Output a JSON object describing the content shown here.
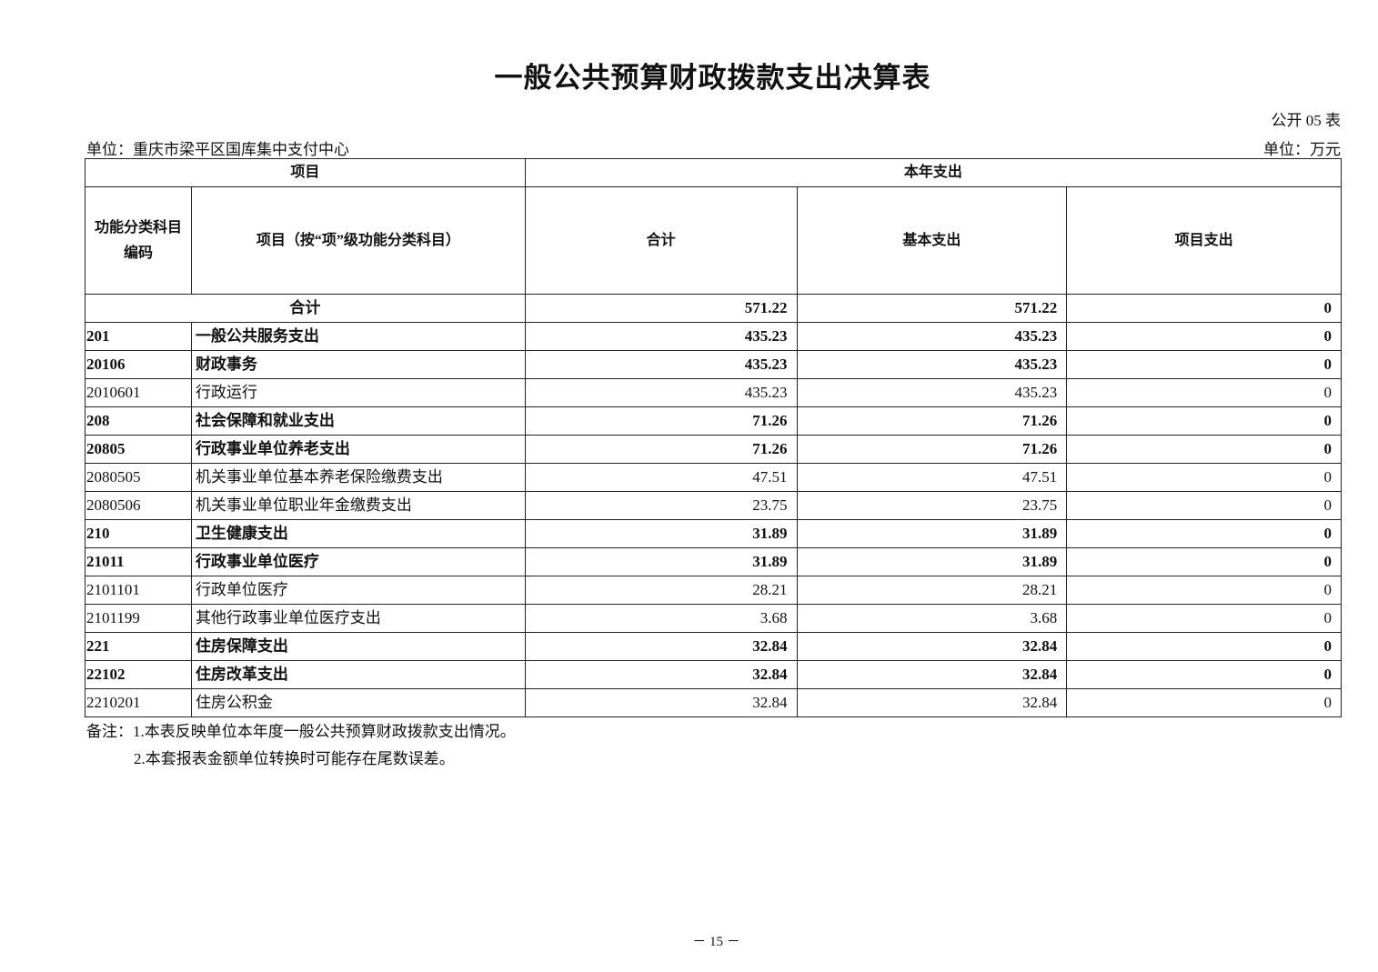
{
  "title": "一般公共预算财政拨款支出决算表",
  "table_no": "公开 05 表",
  "unit_left": "单位：重庆市梁平区国库集中支付中心",
  "unit_right": "单位：万元",
  "headers": {
    "item": "项目",
    "current_year": "本年支出",
    "code": "功能分类科目编码",
    "name": "项目（按“项”级功能分类科目）",
    "total": "合计",
    "basic": "基本支出",
    "project": "项目支出"
  },
  "total_row": {
    "label": "合计",
    "total": "571.22",
    "basic": "571.22",
    "project": "0"
  },
  "rows": [
    {
      "code": "201",
      "name": "一般公共服务支出",
      "total": "435.23",
      "basic": "435.23",
      "project": "0",
      "bold": true
    },
    {
      "code": "20106",
      "name": "财政事务",
      "total": "435.23",
      "basic": "435.23",
      "project": "0",
      "bold": true
    },
    {
      "code": "2010601",
      "name": "行政运行",
      "total": "435.23",
      "basic": "435.23",
      "project": "0",
      "bold": false
    },
    {
      "code": "208",
      "name": "社会保障和就业支出",
      "total": "71.26",
      "basic": "71.26",
      "project": "0",
      "bold": true
    },
    {
      "code": "20805",
      "name": "行政事业单位养老支出",
      "total": "71.26",
      "basic": "71.26",
      "project": "0",
      "bold": true
    },
    {
      "code": "2080505",
      "name": "机关事业单位基本养老保险缴费支出",
      "total": "47.51",
      "basic": "47.51",
      "project": "0",
      "bold": false
    },
    {
      "code": "2080506",
      "name": "机关事业单位职业年金缴费支出",
      "total": "23.75",
      "basic": "23.75",
      "project": "0",
      "bold": false
    },
    {
      "code": "210",
      "name": "卫生健康支出",
      "total": "31.89",
      "basic": "31.89",
      "project": "0",
      "bold": true
    },
    {
      "code": "21011",
      "name": "行政事业单位医疗",
      "total": "31.89",
      "basic": "31.89",
      "project": "0",
      "bold": true
    },
    {
      "code": "2101101",
      "name": "行政单位医疗",
      "total": "28.21",
      "basic": "28.21",
      "project": "0",
      "bold": false
    },
    {
      "code": "2101199",
      "name": "其他行政事业单位医疗支出",
      "total": "3.68",
      "basic": "3.68",
      "project": "0",
      "bold": false
    },
    {
      "code": "221",
      "name": "住房保障支出",
      "total": "32.84",
      "basic": "32.84",
      "project": "0",
      "bold": true
    },
    {
      "code": "22102",
      "name": "住房改革支出",
      "total": "32.84",
      "basic": "32.84",
      "project": "0",
      "bold": true
    },
    {
      "code": "2210201",
      "name": "住房公积金",
      "total": "32.84",
      "basic": "32.84",
      "project": "0",
      "bold": false
    }
  ],
  "notes": [
    "备注：1.本表反映单位本年度一般公共预算财政拨款支出情况。",
    "2.本套报表金额单位转换时可能存在尾数误差。"
  ],
  "page_number": "－ 15 －"
}
